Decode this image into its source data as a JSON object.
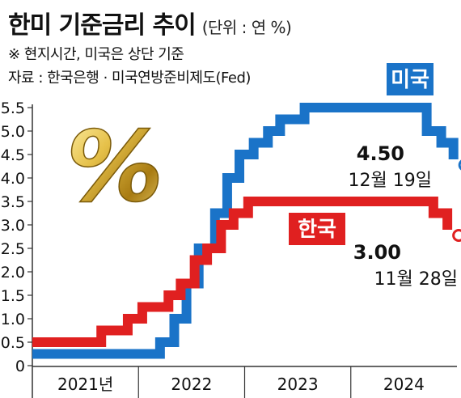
{
  "header": {
    "title": "한미 기준금리 추이",
    "unit": "(단위 : 연 %)",
    "note": "※ 현지시간, 미국은 상단 기준",
    "source": "자료 : 한국은행 · 미국연방준비제도(Fed)"
  },
  "decor": {
    "percent_symbol": "%"
  },
  "colors": {
    "us": "#1a73c8",
    "korea": "#e02020",
    "gold": "#c9a227"
  },
  "chart_data": {
    "type": "line",
    "step": true,
    "title": "한미 기준금리 추이",
    "ylim": [
      0,
      5.5
    ],
    "yticks": [
      "0",
      "0.5",
      "1.0",
      "1.5",
      "2.0",
      "2.5",
      "3.0",
      "3.5",
      "4.0",
      "4.5",
      "5.0",
      "5.5"
    ],
    "xlim": [
      "2021-01-01",
      "2024-12-31"
    ],
    "xlabels": [
      "2021년",
      "2022",
      "2023",
      "2024"
    ],
    "grid": false,
    "series": [
      {
        "name": "미국",
        "color": "#1a73c8",
        "points": [
          [
            "2021-01-01",
            0.25
          ],
          [
            "2022-03-16",
            0.5
          ],
          [
            "2022-05-04",
            1.0
          ],
          [
            "2022-06-15",
            1.75
          ],
          [
            "2022-07-27",
            2.5
          ],
          [
            "2022-09-21",
            3.25
          ],
          [
            "2022-11-02",
            4.0
          ],
          [
            "2022-12-14",
            4.5
          ],
          [
            "2023-02-01",
            4.75
          ],
          [
            "2023-03-22",
            5.0
          ],
          [
            "2023-05-03",
            5.25
          ],
          [
            "2023-07-26",
            5.5
          ],
          [
            "2024-09-18",
            5.0
          ],
          [
            "2024-11-07",
            4.75
          ],
          [
            "2024-12-19",
            4.5
          ]
        ],
        "end_label": {
          "value": "4.50",
          "date": "12월 19일"
        }
      },
      {
        "name": "한국",
        "color": "#e02020",
        "points": [
          [
            "2021-01-01",
            0.5
          ],
          [
            "2021-08-26",
            0.75
          ],
          [
            "2021-11-25",
            1.0
          ],
          [
            "2022-01-14",
            1.25
          ],
          [
            "2022-04-14",
            1.5
          ],
          [
            "2022-05-26",
            1.75
          ],
          [
            "2022-07-13",
            2.25
          ],
          [
            "2022-08-25",
            2.5
          ],
          [
            "2022-10-12",
            3.0
          ],
          [
            "2022-11-24",
            3.25
          ],
          [
            "2023-01-13",
            3.5
          ],
          [
            "2024-10-11",
            3.25
          ],
          [
            "2024-11-28",
            3.0
          ]
        ],
        "end_label": {
          "value": "3.00",
          "date": "11월 28일"
        }
      }
    ]
  }
}
